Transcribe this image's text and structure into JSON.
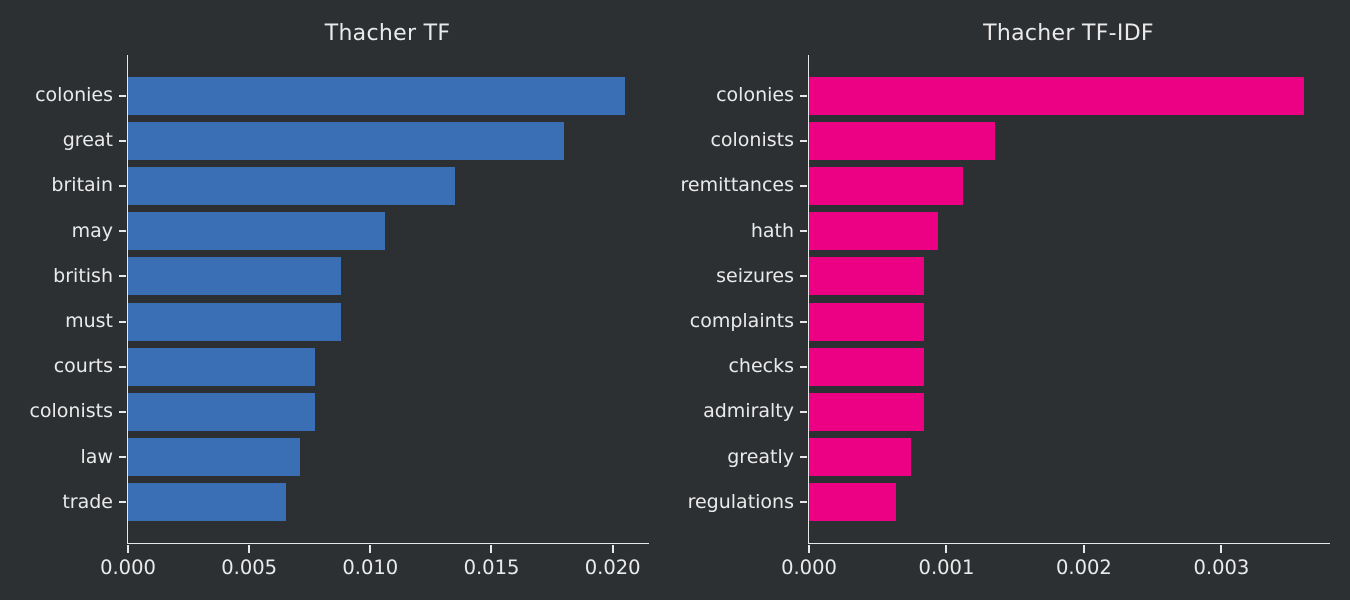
{
  "figure": {
    "background_color": "#2d3033",
    "text_color": "#eaeaea",
    "axis_color": "#e8e8e8"
  },
  "chart_data": [
    {
      "type": "bar",
      "orientation": "horizontal",
      "title": "Thacher TF",
      "bar_color": "#3b6fb5",
      "categories": [
        "colonies",
        "great",
        "britain",
        "may",
        "british",
        "must",
        "courts",
        "colonists",
        "law",
        "trade"
      ],
      "values": [
        0.0205,
        0.018,
        0.0135,
        0.0106,
        0.0088,
        0.0088,
        0.0077,
        0.0077,
        0.0071,
        0.0065
      ],
      "xlabel": "",
      "ylabel": "",
      "xlim": [
        0,
        0.0215
      ],
      "xticks": [
        0,
        0.005,
        0.01,
        0.015,
        0.02
      ],
      "xtick_labels": [
        "0.000",
        "0.005",
        "0.010",
        "0.015",
        "0.020"
      ],
      "grid": false,
      "legend": false
    },
    {
      "type": "bar",
      "orientation": "horizontal",
      "title": "Thacher TF-IDF",
      "bar_color": "#ec0084",
      "categories": [
        "colonies",
        "colonists",
        "remittances",
        "hath",
        "seizures",
        "complaints",
        "checks",
        "admiralty",
        "greatly",
        "regulations"
      ],
      "values": [
        0.0036,
        0.00135,
        0.00112,
        0.00094,
        0.00084,
        0.00084,
        0.00084,
        0.00084,
        0.00074,
        0.00063
      ],
      "xlabel": "",
      "ylabel": "",
      "xlim": [
        0,
        0.00379
      ],
      "xticks": [
        0,
        0.001,
        0.002,
        0.003
      ],
      "xtick_labels": [
        "0.000",
        "0.001",
        "0.002",
        "0.003"
      ],
      "grid": false,
      "legend": false
    }
  ]
}
